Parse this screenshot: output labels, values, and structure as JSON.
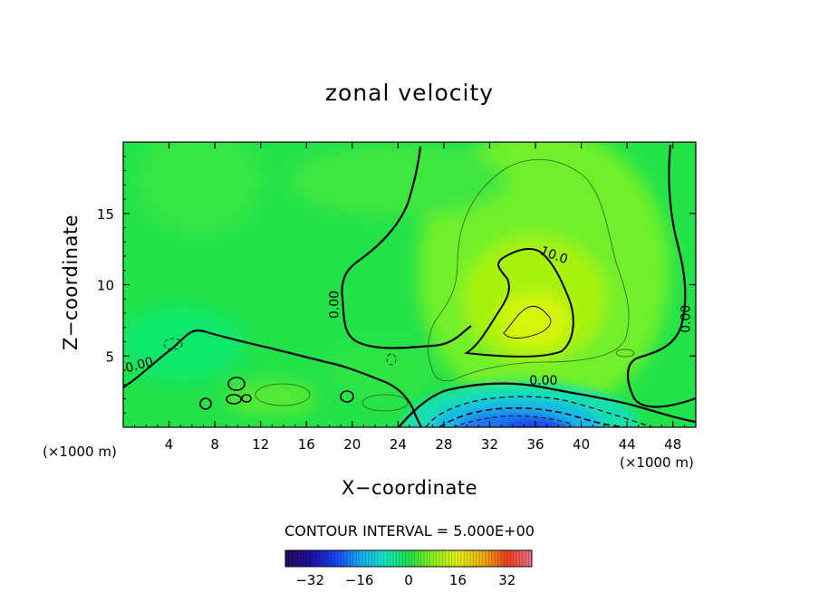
{
  "chart_data": {
    "type": "heatmap",
    "title": "zonal velocity",
    "xlabel": "X−coordinate",
    "ylabel": "Z−coordinate",
    "x_unit_left": "(×1000 m)",
    "x_unit_right": "(×1000 m)",
    "xlim": [
      0,
      50
    ],
    "ylim": [
      0,
      20
    ],
    "x_ticks": [
      4,
      8,
      12,
      16,
      20,
      24,
      28,
      32,
      36,
      40,
      44,
      48
    ],
    "y_ticks": [
      5,
      10,
      15
    ],
    "contour_interval_label": "CONTOUR INTERVAL = 5.000E+00",
    "contour_labels": [
      {
        "text": "0.00",
        "x": 1.5,
        "y": 4.1
      },
      {
        "text": "0.00",
        "x": 18.8,
        "y": 8.6
      },
      {
        "text": "0.00",
        "x": 36.7,
        "y": 3.0
      },
      {
        "text": "0.00",
        "x": 49.5,
        "y": 7.6
      },
      {
        "text": "10.0",
        "x": 37.5,
        "y": 11.8
      }
    ],
    "colorbar": {
      "range": [
        -40,
        40
      ],
      "tick_labels": [
        "−32",
        "−16",
        "0",
        "16",
        "32"
      ],
      "tick_values": [
        -32,
        -16,
        0,
        16,
        32
      ]
    }
  }
}
